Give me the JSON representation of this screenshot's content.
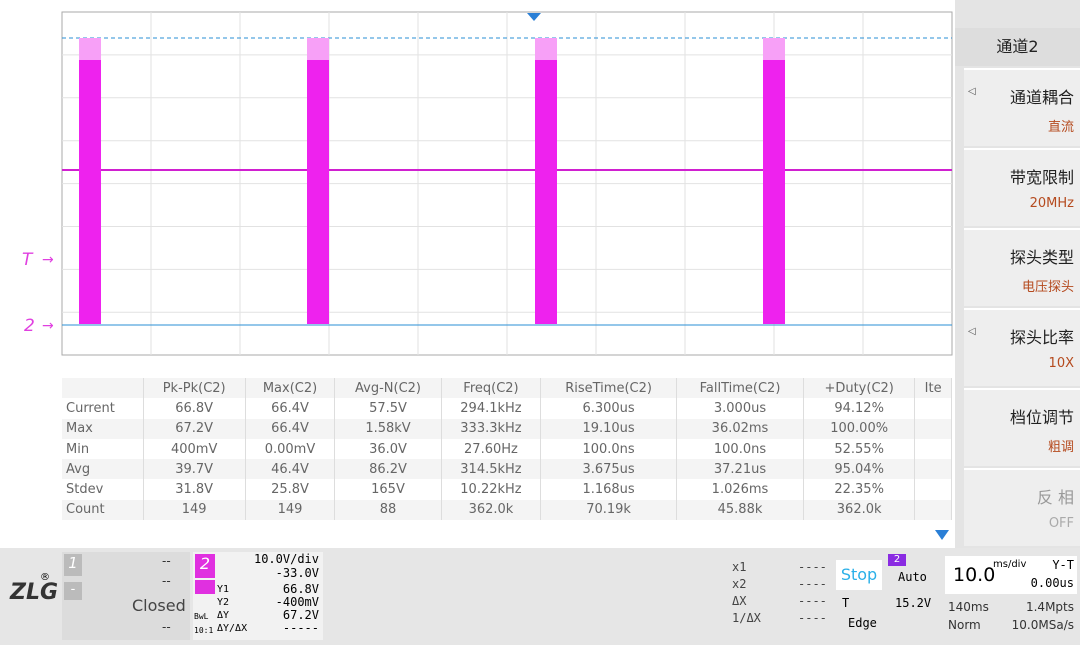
{
  "screen": {
    "markers": {
      "trigger": "T",
      "channel": "2"
    }
  },
  "measurements": {
    "headers": [
      "Pk-Pk(C2)",
      "Max(C2)",
      "Avg-N(C2)",
      "Freq(C2)",
      "RiseTime(C2)",
      "FallTime(C2)",
      "+Duty(C2)",
      "Ite"
    ],
    "rows": [
      {
        "label": "Current",
        "cells": [
          "66.8V",
          "66.4V",
          "57.5V",
          "294.1kHz",
          "6.300us",
          "3.000us",
          "94.12%"
        ]
      },
      {
        "label": "Max",
        "cells": [
          "67.2V",
          "66.4V",
          "1.58kV",
          "333.3kHz",
          "19.10us",
          "36.02ms",
          "100.00%"
        ]
      },
      {
        "label": "Min",
        "cells": [
          "400mV",
          "0.00mV",
          "36.0V",
          "27.60Hz",
          "100.0ns",
          "100.0ns",
          "52.55%"
        ]
      },
      {
        "label": "Avg",
        "cells": [
          "39.7V",
          "46.4V",
          "86.2V",
          "314.5kHz",
          "3.675us",
          "37.21us",
          "95.04%"
        ]
      },
      {
        "label": "Stdev",
        "cells": [
          "31.8V",
          "25.8V",
          "165V",
          "10.22kHz",
          "1.168us",
          "1.026ms",
          "22.35%"
        ]
      },
      {
        "label": "Count",
        "cells": [
          "149",
          "149",
          "88",
          "362.0k",
          "70.19k",
          "45.88k",
          "362.0k"
        ]
      }
    ]
  },
  "menu": {
    "title": "通道2",
    "items": [
      {
        "label": "通道耦合",
        "value": "直流"
      },
      {
        "label": "带宽限制",
        "value": "20MHz"
      },
      {
        "label": "探头类型",
        "value": "电压探头"
      },
      {
        "label": "探头比率",
        "value": "10X"
      },
      {
        "label": "档位调节",
        "value": "粗调"
      },
      {
        "label": "反 相",
        "value": "OFF"
      }
    ]
  },
  "status": {
    "logo": "ZLG",
    "ch1": {
      "number": "1",
      "sub": "-",
      "readouts": [
        "--",
        "--",
        "--"
      ]
    },
    "closed": "Closed",
    "ch2": {
      "number": "2",
      "scale": "10.0V/div",
      "offset": "-33.0V",
      "bwl": "BwL",
      "probe": "10:1",
      "cursors": [
        {
          "label": "Y1",
          "value": "66.8V"
        },
        {
          "label": "Y2",
          "value": "-400mV"
        },
        {
          "label": "ΔY",
          "value": "67.2V"
        },
        {
          "label": "ΔY/ΔX",
          "value": "-----"
        }
      ]
    },
    "xcursors": [
      {
        "label": "x1",
        "value": "----"
      },
      {
        "label": "x2",
        "value": "----"
      },
      {
        "label": "ΔX",
        "value": "----"
      },
      {
        "label": "1/ΔX",
        "value": "----"
      }
    ],
    "run": "Stop",
    "trigger": {
      "source": "2",
      "mode": "Auto",
      "label": "T",
      "level": "15.2V",
      "type": "Edge"
    },
    "timebase": {
      "value": "10.0",
      "unit": "ms/div",
      "mode": "Y-T",
      "delay": "0.00us",
      "window": "140ms",
      "points": "1.4Mpts",
      "acq": "Norm",
      "rate": "10.0MSa/s"
    }
  }
}
